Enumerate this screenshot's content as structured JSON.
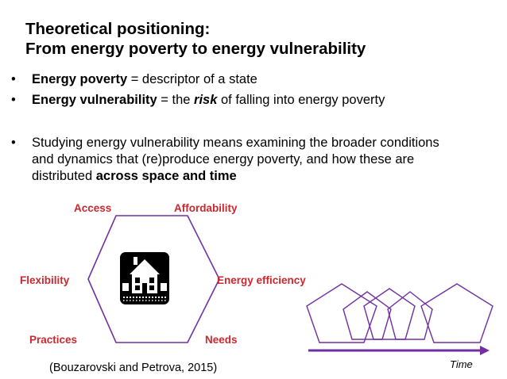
{
  "title": {
    "line1": "Theoretical positioning:",
    "line2": "From energy poverty to energy vulnerability"
  },
  "bullets": {
    "marker": "•",
    "b1": {
      "bold": "Energy poverty",
      "rest": " = descriptor of a state"
    },
    "b2": {
      "bold": "Energy vulnerability",
      "mid": " = the ",
      "italic": "risk",
      "rest": " of falling into energy poverty"
    },
    "b3": {
      "line1": "Studying energy vulnerability means examining the broader conditions",
      "line2": "and dynamics that (re)produce energy poverty, and how these are",
      "line3_pre": "distributed ",
      "line3_bold": "across space and time"
    }
  },
  "hexagon_labels": {
    "access": "Access",
    "affordability": "Affordability",
    "flexibility": "Flexibility",
    "energy_efficiency": "Energy efficiency",
    "practices": "Practices",
    "needs": "Needs"
  },
  "citation": "(Bouzarovski and Petrova, 2015)",
  "time_label": "Time",
  "icons": {
    "house": "house-icon",
    "arrow": "time-arrow-icon"
  },
  "colors": {
    "accent_red": "#c8292f",
    "purple": "#7030a0"
  }
}
